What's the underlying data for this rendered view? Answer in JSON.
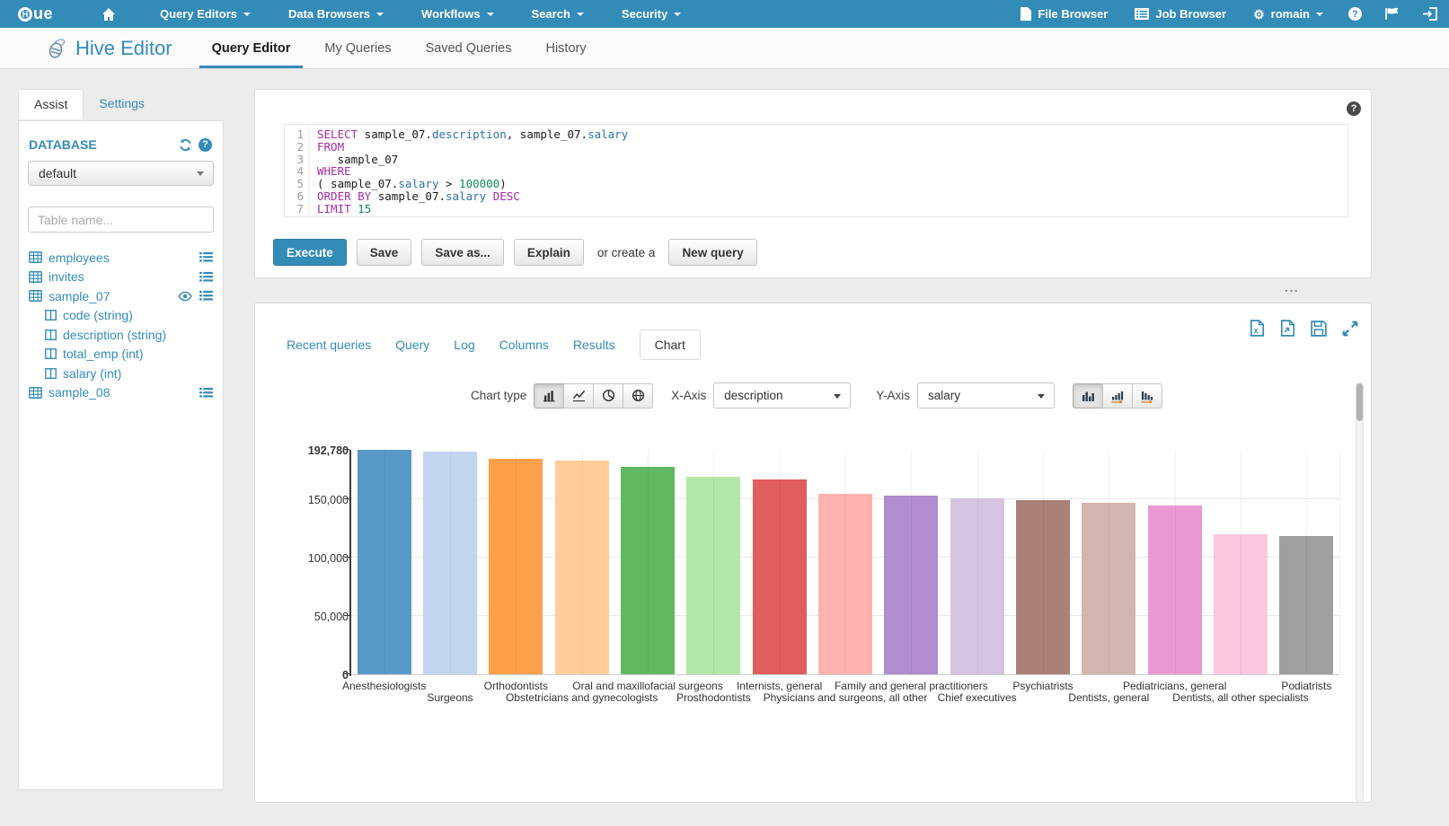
{
  "navbar": {
    "brand": "HUE",
    "menus": [
      "Query Editors",
      "Data Browsers",
      "Workflows",
      "Search",
      "Security"
    ],
    "file_browser": "File Browser",
    "job_browser": "Job Browser",
    "user": "romain",
    "icon_buttons": [
      "help-icon",
      "flag-icon",
      "logout-icon"
    ]
  },
  "app_header": {
    "logo_title": "Hive Editor",
    "tabs": [
      "Query Editor",
      "My Queries",
      "Saved Queries",
      "History"
    ],
    "active_tab": "Query Editor"
  },
  "assist": {
    "tabs": [
      "Assist",
      "Settings"
    ],
    "active_tab": "Assist",
    "database_label": "DATABASE",
    "database_value": "default",
    "table_filter_placeholder": "Table name...",
    "tables": [
      {
        "name": "employees",
        "icons": [
          "menu-icon"
        ],
        "columns": []
      },
      {
        "name": "invites",
        "icons": [
          "menu-icon"
        ],
        "columns": []
      },
      {
        "name": "sample_07",
        "icons": [
          "eye-icon",
          "menu-icon"
        ],
        "columns": [
          "code (string)",
          "description (string)",
          "total_emp (int)",
          "salary (int)"
        ]
      },
      {
        "name": "sample_08",
        "icons": [
          "menu-icon"
        ],
        "columns": []
      }
    ]
  },
  "editor": {
    "lines": [
      [
        {
          "t": "SELECT",
          "c": "kw"
        },
        {
          "t": " sample_07.",
          "c": "pl"
        },
        {
          "t": "description",
          "c": "fd"
        },
        {
          "t": ", sample_07.",
          "c": "pl"
        },
        {
          "t": "salary",
          "c": "fd"
        }
      ],
      [
        {
          "t": "FROM",
          "c": "kw"
        }
      ],
      [
        {
          "t": "   sample_07",
          "c": "pl"
        }
      ],
      [
        {
          "t": "WHERE",
          "c": "kw"
        }
      ],
      [
        {
          "t": "( sample_07.",
          "c": "pl"
        },
        {
          "t": "salary",
          "c": "fd"
        },
        {
          "t": " > ",
          "c": "pl"
        },
        {
          "t": "100000",
          "c": "nm"
        },
        {
          "t": ")",
          "c": "pl"
        }
      ],
      [
        {
          "t": "ORDER BY",
          "c": "kw"
        },
        {
          "t": " sample_07.",
          "c": "pl"
        },
        {
          "t": "salary",
          "c": "fd"
        },
        {
          "t": " ",
          "c": "pl"
        },
        {
          "t": "DESC",
          "c": "kw"
        }
      ],
      [
        {
          "t": "LIMIT",
          "c": "kw"
        },
        {
          "t": " 15",
          "c": "nm"
        }
      ]
    ],
    "actions": {
      "execute": "Execute",
      "save": "Save",
      "save_as": "Save as...",
      "explain": "Explain",
      "or_create": "or create a",
      "new_query": "New query"
    }
  },
  "resizer": "...",
  "results": {
    "tabs": [
      "Recent queries",
      "Query",
      "Log",
      "Columns",
      "Results",
      "Chart"
    ],
    "active_tab": "Chart",
    "export_icons": [
      "download-excel-icon",
      "download-file-icon",
      "save-icon",
      "expand-icon"
    ]
  },
  "chart_controls": {
    "chart_type_label": "Chart type",
    "chart_type_options": [
      "bar-chart-icon",
      "line-chart-icon",
      "pie-chart-icon",
      "map-chart-icon"
    ],
    "active_chart_type": "bar-chart-icon",
    "x_axis_label": "X-Axis",
    "x_axis_value": "description",
    "y_axis_label": "Y-Axis",
    "y_axis_value": "salary",
    "sort_options": [
      "sort-none-icon",
      "sort-ascending-icon",
      "sort-descending-icon"
    ],
    "active_sort": "sort-none-icon"
  },
  "chart_data": {
    "type": "bar",
    "title": "",
    "xlabel": "description",
    "ylabel": "salary",
    "ylim": [
      0,
      192780
    ],
    "grid": true,
    "legend": "none",
    "categories": [
      "Anesthesiologists",
      "Surgeons",
      "Orthodontists",
      "Obstetricians and gynecologists",
      "Oral and maxillofacial surgeons",
      "Prosthodontists",
      "Internists, general",
      "Physicians and surgeons, all other",
      "Family and general practitioners",
      "Chief executives",
      "Psychiatrists",
      "Dentists, general",
      "Pediatricians, general",
      "Dentists, all other specialists",
      "Podiatrists"
    ],
    "values": [
      192780,
      191410,
      185340,
      183600,
      178440,
      169810,
      167270,
      155150,
      153640,
      151370,
      149990,
      147010,
      145210,
      120360,
      118500
    ],
    "colors": [
      "#5799C7",
      "#C2D5EE",
      "#FF9F4A",
      "#FFCC9A",
      "#61B861",
      "#B2E7A7",
      "#E05D5E",
      "#FFB2B0",
      "#AF8DCE",
      "#D4C4E0",
      "#A98178",
      "#D3B5AF",
      "#EA99D2",
      "#F9C9DE",
      "#9F9F9F"
    ],
    "y_ticks": [
      {
        "label": "0",
        "value": 0,
        "bold": true
      },
      {
        "label": "50,000",
        "value": 50000,
        "bold": false
      },
      {
        "label": "100,000",
        "value": 100000,
        "bold": false
      },
      {
        "label": "150,000",
        "value": 150000,
        "bold": false
      },
      {
        "label": "192,780",
        "value": 192780,
        "bold": true
      }
    ]
  }
}
